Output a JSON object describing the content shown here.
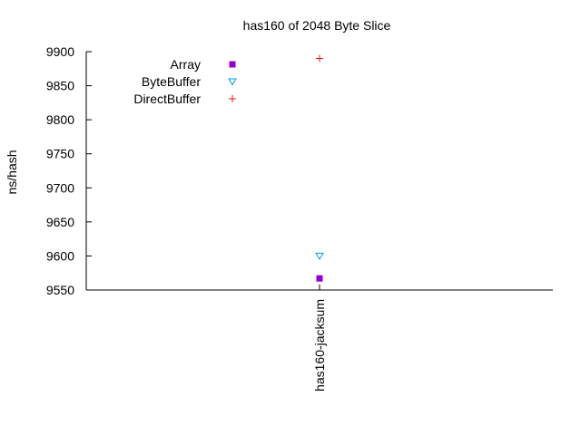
{
  "chart_data": {
    "type": "scatter",
    "title": "has160 of 2048 Byte Slice",
    "xlabel": "",
    "ylabel": "ns/hash",
    "categories": [
      "has160-jacksum"
    ],
    "ylim": [
      9550,
      9900
    ],
    "yticks": [
      9550,
      9600,
      9650,
      9700,
      9750,
      9800,
      9850,
      9900
    ],
    "grid": false,
    "legend_position": "top-left",
    "series": [
      {
        "name": "Array",
        "values": [
          9567
        ],
        "marker": "filled-square",
        "color": "#9400d3"
      },
      {
        "name": "ByteBuffer",
        "values": [
          9600
        ],
        "marker": "open-triangle-down",
        "color": "#009ee0"
      },
      {
        "name": "DirectBuffer",
        "values": [
          9890
        ],
        "marker": "plus",
        "color": "#e51e10"
      }
    ]
  }
}
